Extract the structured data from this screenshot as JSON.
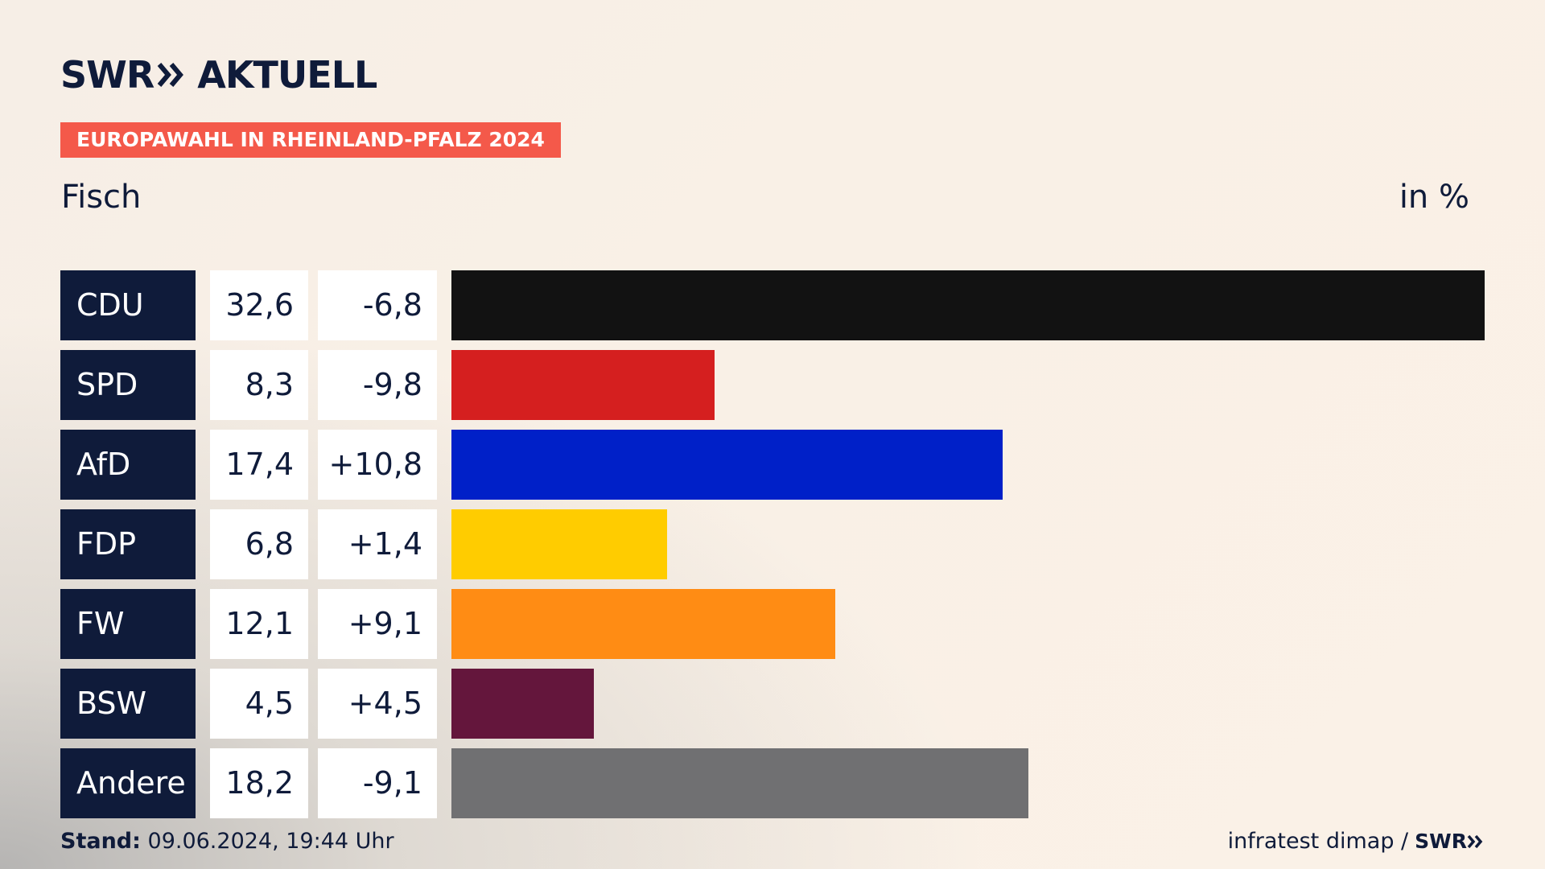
{
  "brand": {
    "name": "SWR",
    "suffix": "AKTUELL"
  },
  "tag": "EUROPAWAHL IN RHEINLAND-PFALZ 2024",
  "subtitle": "Fisch",
  "unit": "in %",
  "colors": {
    "navy": "#0f1b3a",
    "tag": "#f4594a"
  },
  "chart_data": {
    "type": "bar",
    "orientation": "horizontal",
    "title": "EUROPAWAHL IN RHEINLAND-PFALZ 2024",
    "subtitle": "Fisch",
    "ylabel": "in %",
    "xlim": [
      0,
      32.6
    ],
    "categories": [
      "CDU",
      "SPD",
      "AfD",
      "FDP",
      "FW",
      "BSW",
      "Andere"
    ],
    "values": [
      32.6,
      8.3,
      17.4,
      6.8,
      12.1,
      4.5,
      18.2
    ],
    "value_labels": [
      "32,6",
      "8,3",
      "17,4",
      "6,8",
      "12,1",
      "4,5",
      "18,2"
    ],
    "diff_labels": [
      "-6,8",
      "-9,8",
      "+10,8",
      "+1,4",
      "+9,1",
      "+4,5",
      "-9,1"
    ],
    "diffs": [
      -6.8,
      -9.8,
      10.8,
      1.4,
      9.1,
      4.5,
      -9.1
    ],
    "colors": [
      "#121212",
      "#d51f1f",
      "#0020c8",
      "#ffcc00",
      "#ff8c14",
      "#64163c",
      "#707072"
    ]
  },
  "footer": {
    "stand_label": "Stand:",
    "stand_value": "09.06.2024, 19:44 Uhr",
    "source": "infratest dimap /",
    "source_brand": "SWR"
  }
}
